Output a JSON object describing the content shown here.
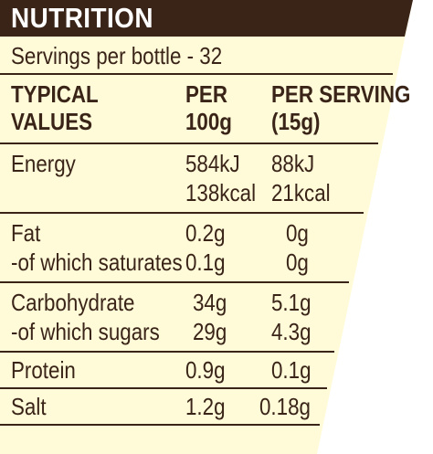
{
  "header": {
    "title": "NUTRITION"
  },
  "servings": "Servings per bottle - 32",
  "columns": {
    "typical_line1": "TYPICAL",
    "typical_line2": "VALUES",
    "per100_line1": "PER",
    "per100_line2": "100g",
    "perserv_line1": "PER SERVING",
    "perserv_line2": "(15g)"
  },
  "rows": {
    "energy": {
      "label": "Energy",
      "per100_kj": "584kJ",
      "per100_kcal": "138kcal",
      "serv_kj": "88kJ",
      "serv_kcal": "21kcal"
    },
    "fat": {
      "label": "Fat",
      "per100": "0.2g",
      "serv": "0g"
    },
    "saturates": {
      "label": "-of which saturates",
      "per100": "0.1g",
      "serv": "0g"
    },
    "carbohydrate": {
      "label": "Carbohydrate",
      "per100": "34g",
      "serv": "5.1g"
    },
    "sugars": {
      "label": "-of which sugars",
      "per100": "29g",
      "serv": "4.3g"
    },
    "protein": {
      "label": "Protein",
      "per100": "0.9g",
      "serv": "0.1g"
    },
    "salt": {
      "label": "Salt",
      "per100": "1.2g",
      "serv": "0.18g"
    }
  },
  "colors": {
    "dark_brown": "#3a2418",
    "cream": "#fffbd9"
  }
}
